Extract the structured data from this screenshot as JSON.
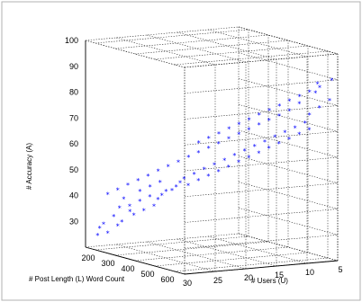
{
  "chart_data": {
    "type": "scatter3d",
    "xlabel": "# Post Length (L) Word Count",
    "ylabel": "# Users (U)",
    "zlabel": "# Accuracy (A)",
    "xlim": [
      150,
      650
    ],
    "ylim": [
      5,
      30
    ],
    "zlim": [
      20,
      100
    ],
    "x_ticks": [
      "200",
      "300",
      "400",
      "500",
      "600"
    ],
    "y_ticks": [
      "5",
      "10",
      "15",
      "20",
      "25",
      "30"
    ],
    "z_ticks": [
      "100",
      "90",
      "80",
      "70",
      "60",
      "50",
      "40",
      "30"
    ],
    "grid": true,
    "marker": "star",
    "color": "#0000ff",
    "points": [
      [
        180,
        29,
        25
      ],
      [
        190,
        29,
        28
      ],
      [
        200,
        28,
        26
      ],
      [
        210,
        29,
        30
      ],
      [
        220,
        27,
        29
      ],
      [
        230,
        28,
        33
      ],
      [
        240,
        27,
        31
      ],
      [
        250,
        26,
        35
      ],
      [
        260,
        28,
        37
      ],
      [
        270,
        26,
        34
      ],
      [
        280,
        27,
        38
      ],
      [
        290,
        25,
        36
      ],
      [
        300,
        26,
        40
      ],
      [
        310,
        24,
        38
      ],
      [
        320,
        25,
        42
      ],
      [
        330,
        24,
        41
      ],
      [
        340,
        23,
        44
      ],
      [
        350,
        24,
        43
      ],
      [
        360,
        22,
        46
      ],
      [
        370,
        23,
        45
      ],
      [
        380,
        22,
        48
      ],
      [
        390,
        21,
        47
      ],
      [
        400,
        22,
        50
      ],
      [
        410,
        20,
        49
      ],
      [
        420,
        21,
        52
      ],
      [
        430,
        19,
        51
      ],
      [
        440,
        20,
        54
      ],
      [
        450,
        18,
        53
      ],
      [
        460,
        19,
        56
      ],
      [
        470,
        17,
        55
      ],
      [
        480,
        18,
        58
      ],
      [
        490,
        16,
        57
      ],
      [
        500,
        17,
        60
      ],
      [
        510,
        15,
        59
      ],
      [
        520,
        16,
        62
      ],
      [
        530,
        14,
        61
      ],
      [
        540,
        15,
        64
      ],
      [
        550,
        13,
        63
      ],
      [
        560,
        14,
        66
      ],
      [
        570,
        12,
        65
      ],
      [
        580,
        13,
        68
      ],
      [
        590,
        11,
        67
      ],
      [
        600,
        12,
        70
      ],
      [
        610,
        10,
        69
      ],
      [
        620,
        11,
        72
      ],
      [
        630,
        9,
        71
      ],
      [
        640,
        10,
        74
      ],
      [
        600,
        8,
        76
      ],
      [
        620,
        7,
        79
      ],
      [
        640,
        6,
        82
      ],
      [
        580,
        9,
        80
      ],
      [
        560,
        10,
        77
      ],
      [
        540,
        11,
        75
      ],
      [
        520,
        12,
        73
      ],
      [
        500,
        13,
        71
      ],
      [
        480,
        14,
        69
      ],
      [
        460,
        15,
        67
      ],
      [
        440,
        16,
        65
      ],
      [
        420,
        17,
        63
      ],
      [
        400,
        18,
        61
      ],
      [
        380,
        19,
        59
      ],
      [
        360,
        20,
        57
      ],
      [
        340,
        21,
        55
      ],
      [
        320,
        22,
        53
      ],
      [
        300,
        23,
        51
      ],
      [
        280,
        24,
        49
      ],
      [
        260,
        25,
        47
      ],
      [
        240,
        26,
        45
      ],
      [
        220,
        27,
        43
      ],
      [
        200,
        28,
        41
      ],
      [
        350,
        18,
        62
      ],
      [
        370,
        17,
        64
      ],
      [
        390,
        16,
        66
      ],
      [
        410,
        15,
        68
      ],
      [
        430,
        14,
        70
      ],
      [
        450,
        13,
        72
      ],
      [
        470,
        12,
        74
      ],
      [
        490,
        11,
        76
      ],
      [
        510,
        10,
        78
      ],
      [
        530,
        9,
        80
      ],
      [
        550,
        8,
        82
      ],
      [
        570,
        7,
        84
      ],
      [
        590,
        6,
        86
      ],
      [
        610,
        7,
        88
      ],
      [
        630,
        8,
        85
      ],
      [
        650,
        6,
        90
      ],
      [
        250,
        27,
        40
      ],
      [
        270,
        25,
        43
      ],
      [
        290,
        24,
        45
      ],
      [
        310,
        23,
        47
      ]
    ]
  }
}
